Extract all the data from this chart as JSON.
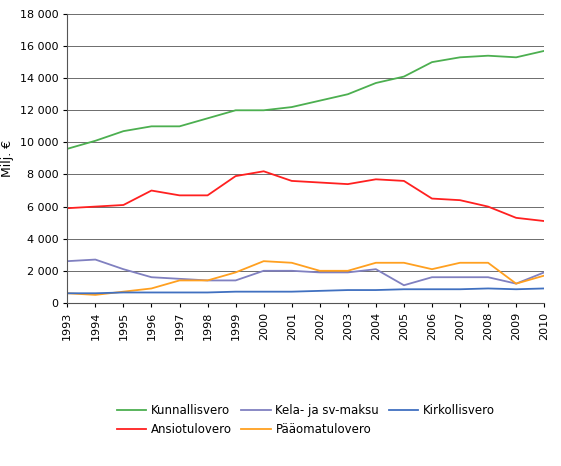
{
  "years": [
    1993,
    1994,
    1995,
    1996,
    1997,
    1998,
    1999,
    2000,
    2001,
    2002,
    2003,
    2004,
    2005,
    2006,
    2007,
    2008,
    2009,
    2010
  ],
  "Kunnallisvero": [
    9600,
    10100,
    10700,
    11000,
    11000,
    11500,
    12000,
    12000,
    12200,
    12600,
    13000,
    13700,
    14100,
    15000,
    15300,
    15400,
    15300,
    15700
  ],
  "Ansiotulovero": [
    5900,
    6000,
    6100,
    7000,
    6700,
    6700,
    7900,
    8200,
    7600,
    7500,
    7400,
    7700,
    7600,
    6500,
    6400,
    6000,
    5300,
    5100
  ],
  "Kela_ja_sv_maksu": [
    2600,
    2700,
    2100,
    1600,
    1500,
    1400,
    1400,
    2000,
    2000,
    1900,
    1900,
    2100,
    1100,
    1600,
    1600,
    1600,
    1200,
    1900
  ],
  "Paaomatulovero": [
    600,
    500,
    700,
    900,
    1400,
    1400,
    1900,
    2600,
    2500,
    2000,
    2000,
    2500,
    2500,
    2100,
    2500,
    2500,
    1200,
    1700
  ],
  "Kirkollisvero": [
    600,
    600,
    650,
    650,
    650,
    650,
    700,
    700,
    700,
    750,
    800,
    800,
    850,
    850,
    850,
    900,
    850,
    900
  ],
  "kunnallisvero_color": "#4CAF50",
  "ansiotulovero_color": "#FF2020",
  "kela_color": "#8080C0",
  "paaomatulovero_color": "#FFA020",
  "kirkollisvero_color": "#4070C0",
  "ylabel": "Milj. €",
  "ylim": [
    0,
    18000
  ],
  "yticks": [
    0,
    2000,
    4000,
    6000,
    8000,
    10000,
    12000,
    14000,
    16000,
    18000
  ],
  "background_color": "#FFFFFF",
  "grid_color": "#333333"
}
